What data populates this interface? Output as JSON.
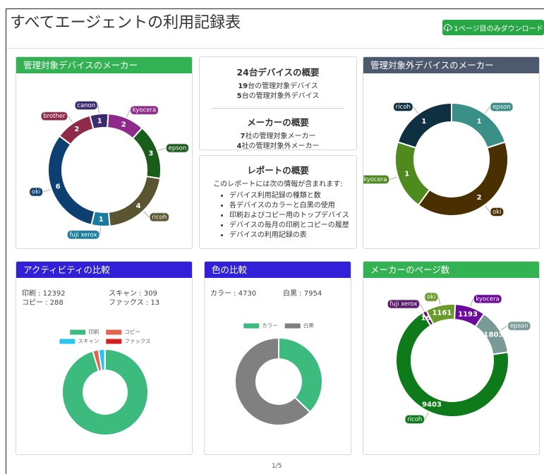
{
  "header": {
    "title": "すべてエージェントの利用記録表",
    "download_button": "1ページ目のみダウンロード"
  },
  "device_summary": {
    "title": "24台デバイスの概要",
    "lines": [
      {
        "count": 19,
        "text": "台の管理対象デバイス"
      },
      {
        "count": 5,
        "text": "台の管理対象外デバイス"
      }
    ]
  },
  "maker_summary": {
    "title": "メーカーの概要",
    "lines": [
      {
        "count": 7,
        "text": "社の管理対象メーカー"
      },
      {
        "count": 4,
        "text": "社の管理対象外メーカー"
      }
    ]
  },
  "report_summary": {
    "title": "レポートの概要",
    "intro": "このレポートには次の情報が含まれます:",
    "items": [
      "デバイス利用記録の種類と数",
      "各デバイスのカラーと白黒の使用",
      "印刷およびコピー用のトップデバイス",
      "デバイスの毎月の印刷とコピーの履歴",
      "デバイスの利用記録の表"
    ]
  },
  "chart_data": [
    {
      "type": "pie",
      "donut": true,
      "title": "管理対象デバイスのメーカー",
      "header_color": "#33b254",
      "categories": [
        "canon",
        "kyocera",
        "epson",
        "ricoh",
        "fuji xerox",
        "oki",
        "brother"
      ],
      "values": [
        1,
        2,
        3,
        4,
        1,
        6,
        2
      ],
      "colors": [
        "#3b2a6e",
        "#8e2a8a",
        "#1a5c1a",
        "#5a5430",
        "#1a7c9c",
        "#0d3f70",
        "#8e2a4a"
      ],
      "data_labels": true,
      "outer_labels": true,
      "legend": false
    },
    {
      "type": "pie",
      "donut": true,
      "title": "管理対象外デバイスのメーカー",
      "header_color": "#4d5a6e",
      "categories": [
        "epson",
        "oki",
        "kyocera",
        "ricoh"
      ],
      "values": [
        1,
        2,
        1,
        1
      ],
      "colors": [
        "#3a8f86",
        "#4a3000",
        "#4e8a1e",
        "#0e3040"
      ],
      "data_labels": true,
      "outer_labels": true,
      "legend": false
    },
    {
      "type": "pie",
      "donut": true,
      "title": "アクティビティの比較",
      "header_color": "#3120d8",
      "categories": [
        "印刷",
        "コピー",
        "スキャン",
        "ファックス"
      ],
      "values": [
        12392,
        288,
        309,
        13
      ],
      "stat_labels": [
        "印刷 :",
        "コピー :",
        "スキャン :",
        "ファックス :"
      ],
      "colors": [
        "#3dba7e",
        "#e0654a",
        "#29c5f0",
        "#d42020"
      ],
      "data_labels": false,
      "outer_labels": false,
      "legend": true
    },
    {
      "type": "pie",
      "donut": true,
      "title": "色の比較",
      "header_color": "#3120d8",
      "categories": [
        "カラー",
        "白黒"
      ],
      "values": [
        4730,
        7954
      ],
      "stat_labels": [
        "カラー :",
        "白黒 :"
      ],
      "colors": [
        "#3dba7e",
        "#808080"
      ],
      "data_labels": false,
      "outer_labels": false,
      "legend": true
    },
    {
      "type": "pie",
      "donut": true,
      "title": "メーカーのページ数",
      "header_color": "#33b254",
      "categories": [
        "kyocera",
        "epson",
        "ricoh",
        "fuji xerox",
        "oki"
      ],
      "values": [
        1193,
        1803,
        9403,
        168,
        1161
      ],
      "colors": [
        "#6a0a9a",
        "#7a9a98",
        "#0f7a1a",
        "#5a1a6a",
        "#6a9a2a"
      ],
      "data_labels": true,
      "outer_labels": true,
      "legend": false
    }
  ],
  "footer": {
    "page": "1/5"
  }
}
